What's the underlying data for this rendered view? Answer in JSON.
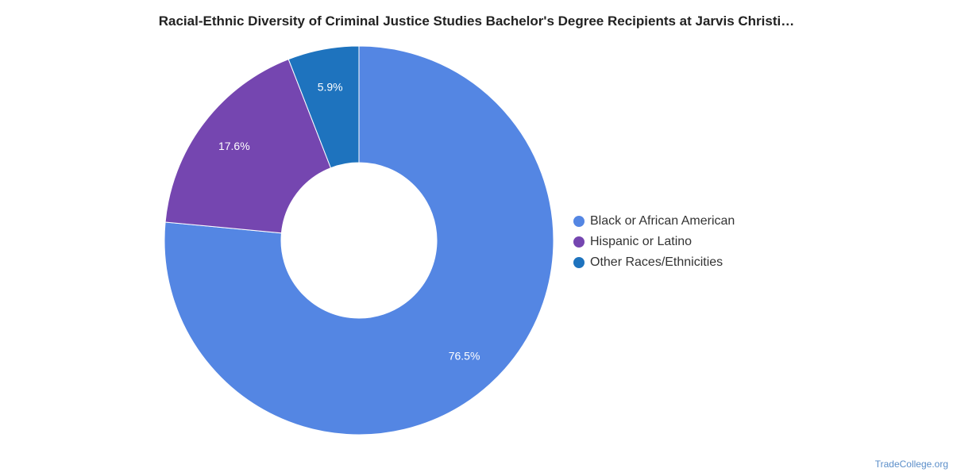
{
  "chart_data": {
    "type": "pie",
    "variant": "donut",
    "title": "Racial-Ethnic Diversity of Criminal Justice Studies Bachelor's Degree Recipients at Jarvis Christi…",
    "legend_position": "right",
    "slices": [
      {
        "name": "Black or African American",
        "value": 76.5,
        "label": "76.5%",
        "color": "#5486e3"
      },
      {
        "name": "Hispanic or Latino",
        "value": 17.6,
        "label": "17.6%",
        "color": "#7546b0"
      },
      {
        "name": "Other Races/Ethnicities",
        "value": 5.9,
        "label": "5.9%",
        "color": "#1e73be"
      }
    ]
  },
  "footer": {
    "source": "TradeCollege.org"
  }
}
